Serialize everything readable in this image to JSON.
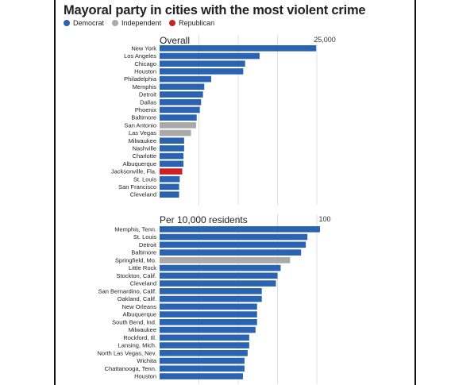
{
  "title": "Mayoral party in cities with the most violent crime",
  "legend": [
    {
      "label": "Democrat",
      "color": "#2a63b1"
    },
    {
      "label": "Independent",
      "color": "#a9a9a9"
    },
    {
      "label": "Republican",
      "color": "#cc2027"
    }
  ],
  "colors": {
    "D": "#2a63b1",
    "I": "#a9a9a9",
    "R": "#cc2027"
  },
  "chart_data": [
    {
      "type": "bar",
      "orientation": "horizontal",
      "title": "Overall",
      "scale_label": "25,000",
      "xlim": [
        0,
        25000
      ],
      "grid": true,
      "categories": [
        "New York",
        "Los Angeles",
        "Chicago",
        "Houston",
        "Philadelphia",
        "Memphis",
        "Detroit",
        "Dallas",
        "Phoenix",
        "Baltimore",
        "San Antonio",
        "Las Vegas",
        "Milwaukee",
        "Nashville",
        "Charlotte",
        "Albuquerque",
        "Jacksonville, Fla.",
        "St. Louis",
        "San Francisco",
        "Cleveland"
      ],
      "values": [
        24900,
        15900,
        13600,
        13300,
        8200,
        7100,
        6900,
        6600,
        6400,
        5900,
        5800,
        5000,
        3900,
        3900,
        3800,
        3800,
        3600,
        3200,
        3100,
        3100
      ],
      "party": [
        "D",
        "D",
        "D",
        "D",
        "D",
        "D",
        "D",
        "D",
        "D",
        "D",
        "I",
        "I",
        "D",
        "D",
        "D",
        "D",
        "R",
        "D",
        "D",
        "D"
      ]
    },
    {
      "type": "bar",
      "orientation": "horizontal",
      "title": "Per 10,000 residents",
      "scale_label": "100",
      "xlim": [
        0,
        100
      ],
      "grid": true,
      "categories": [
        "Memphis, Tenn.",
        "St. Louis",
        "Detroit",
        "Baltimore",
        "Springfield, Mo.",
        "Little Rock",
        "Stockton, Calif.",
        "Cleveland",
        "San Bernardino, Calif.",
        "Oakland, Calif.",
        "New Orleans",
        "Albuquerque",
        "South Bend, Ind.",
        "Milwaukee",
        "Rockford, Ill.",
        "Lansing, Mich.",
        "North Las Vegas, Nev.",
        "Wichita",
        "Chattanooga, Tenn.",
        "Houston"
      ],
      "values": [
        102,
        94,
        93,
        90,
        83,
        77,
        75,
        74,
        65,
        65,
        62,
        62,
        62,
        61,
        57,
        57,
        56,
        54,
        54,
        53
      ],
      "party": [
        "D",
        "D",
        "D",
        "D",
        "I",
        "D",
        "D",
        "D",
        "D",
        "D",
        "D",
        "D",
        "D",
        "D",
        "D",
        "D",
        "D",
        "D",
        "D",
        "D"
      ]
    }
  ]
}
